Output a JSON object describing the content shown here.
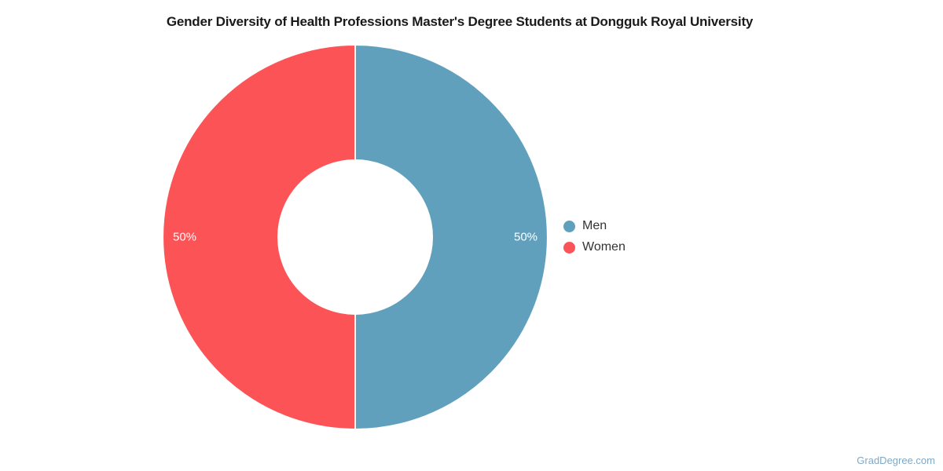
{
  "page": {
    "background": "#FFFFFF",
    "watermark": "GradDegree.com",
    "watermark_color": "#7FA9C5"
  },
  "chart_data": {
    "type": "pie",
    "subtype": "donut",
    "title": "Gender Diversity of Health Professions Master's Degree Students at Dongguk Royal University",
    "title_color": "#1A1A1A",
    "labels": [
      "Men",
      "Women"
    ],
    "values": [
      50,
      50
    ],
    "value_labels": [
      "50%",
      "50%"
    ],
    "colors": [
      "#61A0BD",
      "#FC5356"
    ],
    "slice_label_color": "#FFFFFF",
    "slice_border_color": "#FFFFFF",
    "donut_hole_ratio": 0.4,
    "start_angle_deg": 0,
    "direction": "clockwise",
    "legend_position": "right",
    "legend_text_color": "#333333"
  }
}
